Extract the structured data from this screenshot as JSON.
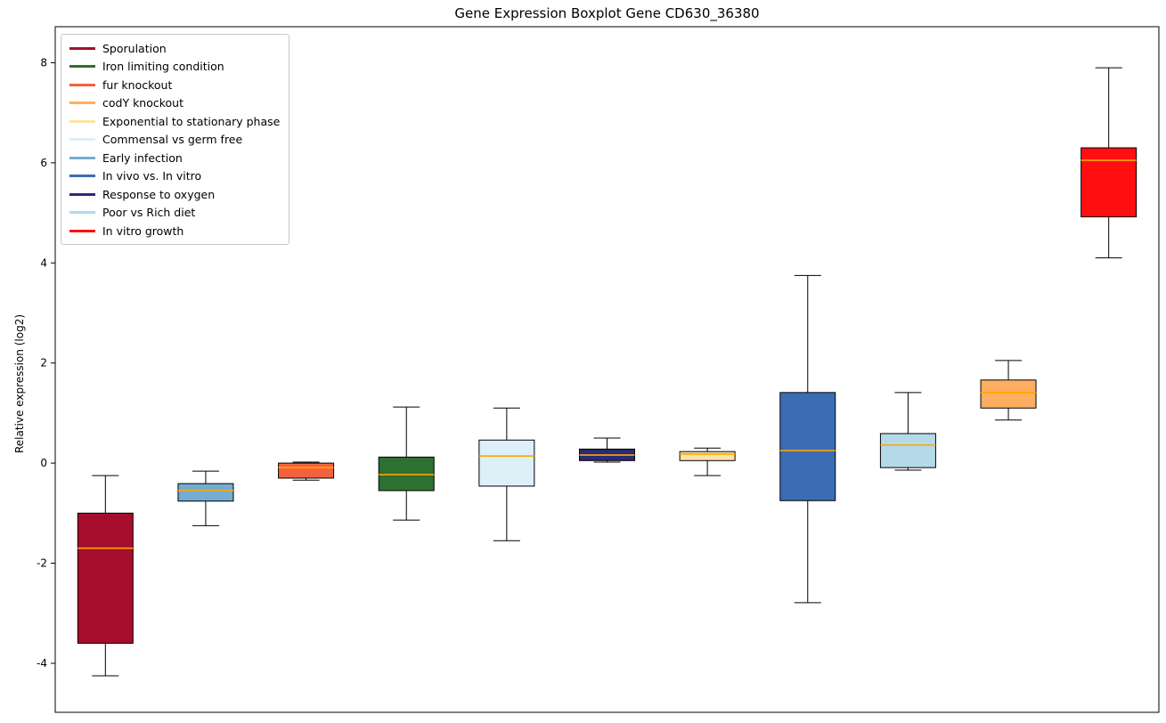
{
  "chart_data": {
    "type": "boxplot",
    "title": "Gene Expression Boxplot Gene CD630_36380",
    "xlabel": "",
    "ylabel": "Relative expression (log2)",
    "ylim": [
      -4.98,
      8.72
    ],
    "yticks": [
      8,
      6,
      4,
      2,
      0,
      -2,
      -4
    ],
    "grid": false,
    "legend_position": "upper left",
    "median_color": "#FFA500",
    "box_edge_color": "#000000",
    "boxes": [
      {
        "label": "Sporulation",
        "color": "#a50f2d",
        "whislo": -4.25,
        "q1": -3.6,
        "med": -1.7,
        "q3": -1.0,
        "whishi": -0.25
      },
      {
        "label": "Early infection",
        "color": "#74add1",
        "whislo": -1.25,
        "q1": -0.76,
        "med": -0.55,
        "q3": -0.41,
        "whishi": -0.16
      },
      {
        "label": "fur knockout",
        "color": "#f4623d",
        "whislo": -0.34,
        "q1": -0.3,
        "med": -0.09,
        "q3": 0.0,
        "whishi": 0.02
      },
      {
        "label": "Iron limiting condition",
        "color": "#2e7031",
        "whislo": -1.14,
        "q1": -0.55,
        "med": -0.23,
        "q3": 0.12,
        "whishi": 1.12
      },
      {
        "label": "Commensal vs germ free",
        "color": "#ddf0f8",
        "whislo": -1.55,
        "q1": -0.46,
        "med": 0.14,
        "q3": 0.46,
        "whishi": 1.1
      },
      {
        "label": "Response to oxygen",
        "color": "#2a2b72",
        "whislo": 0.02,
        "q1": 0.05,
        "med": 0.16,
        "q3": 0.28,
        "whishi": 0.5
      },
      {
        "label": "Exponential to stationary phase",
        "color": "#fde3a7",
        "whislo": -0.25,
        "q1": 0.05,
        "med": 0.18,
        "q3": 0.23,
        "whishi": 0.3
      },
      {
        "label": "In vivo vs. In vitro",
        "color": "#3c6cb4",
        "whislo": -2.79,
        "q1": -0.75,
        "med": 0.25,
        "q3": 1.41,
        "whishi": 3.75
      },
      {
        "label": "Poor vs Rich diet",
        "color": "#b4d9e9",
        "whislo": -0.14,
        "q1": -0.09,
        "med": 0.36,
        "q3": 0.59,
        "whishi": 1.41
      },
      {
        "label": "codY knockout",
        "color": "#fdae61",
        "whislo": 0.86,
        "q1": 1.1,
        "med": 1.41,
        "q3": 1.66,
        "whishi": 2.05
      },
      {
        "label": "In vitro growth",
        "color": "#ff0f0f",
        "whislo": 4.1,
        "q1": 4.92,
        "med": 6.05,
        "q3": 6.3,
        "whishi": 7.9
      }
    ],
    "legend": [
      {
        "label": "Sporulation",
        "color": "#a50f2d"
      },
      {
        "label": "Iron limiting condition",
        "color": "#2e7031"
      },
      {
        "label": "fur knockout",
        "color": "#f4623d"
      },
      {
        "label": "codY knockout",
        "color": "#fdae61"
      },
      {
        "label": "Exponential to stationary phase",
        "color": "#fde3a7"
      },
      {
        "label": "Commensal vs germ free",
        "color": "#ddf0f8"
      },
      {
        "label": "Early infection",
        "color": "#74add1"
      },
      {
        "label": "In vivo vs. In vitro",
        "color": "#3c6cb4"
      },
      {
        "label": "Response to oxygen",
        "color": "#2a2b72"
      },
      {
        "label": "Poor vs Rich diet",
        "color": "#b4d9e9"
      },
      {
        "label": "In vitro growth",
        "color": "#ff0f0f"
      }
    ]
  }
}
